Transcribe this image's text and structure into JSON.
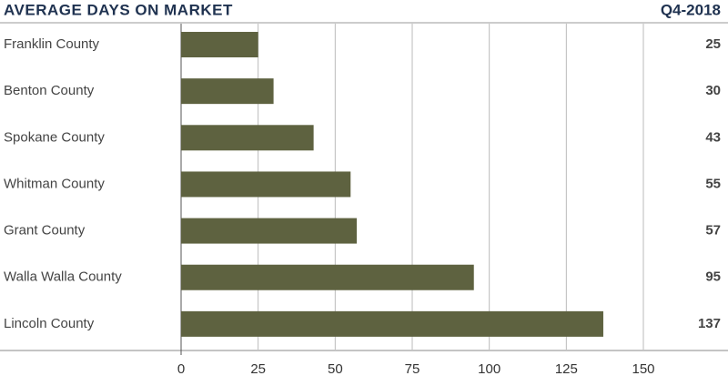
{
  "chart_data": {
    "type": "bar",
    "orientation": "horizontal",
    "title": "AVERAGE DAYS ON MARKET",
    "subtitle": "Q4-2018",
    "categories": [
      "Franklin County",
      "Benton County",
      "Spokane County",
      "Whitman County",
      "Grant County",
      "Walla Walla County",
      "Lincoln County"
    ],
    "values": [
      25,
      30,
      43,
      55,
      57,
      95,
      137
    ],
    "color": "#5e6240",
    "xlim": [
      0,
      150
    ],
    "xticks": [
      0,
      25,
      50,
      75,
      100,
      125,
      150
    ],
    "grid": true
  }
}
